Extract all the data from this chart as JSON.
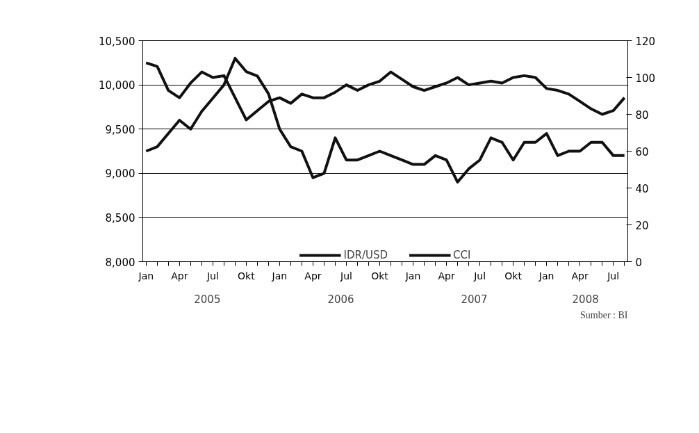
{
  "chart_data": {
    "type": "line",
    "categories": [
      "Jan",
      null,
      null,
      "Apr",
      null,
      null,
      "Jul",
      null,
      null,
      "Okt",
      null,
      null,
      "Jan",
      null,
      null,
      "Apr",
      null,
      null,
      "Jul",
      null,
      null,
      "Okt",
      null,
      null,
      "Jan",
      null,
      null,
      "Apr",
      null,
      null,
      "Jul",
      null,
      null,
      "Okt",
      null,
      null,
      "Jan",
      null,
      null,
      "Apr",
      null,
      null,
      "Jul",
      null
    ],
    "series": [
      {
        "name": "IDR/USD",
        "color": "#111111",
        "values": [
          9250,
          9300,
          9450,
          9600,
          9500,
          9700,
          9850,
          10000,
          10300,
          10150,
          10100,
          9900,
          9500,
          9300,
          9250,
          8950,
          9000,
          9400,
          9150,
          9150,
          9200,
          9250,
          9200,
          9150,
          9100,
          9100,
          9200,
          9150,
          8900,
          9050,
          9150,
          9400,
          9350,
          9150,
          9350,
          9350,
          9450,
          9200,
          9250,
          9250,
          9350,
          9350,
          9200,
          9200
        ]
      },
      {
        "name": "CCI",
        "color": "#111111",
        "axis": "y2",
        "values": [
          108,
          106,
          93,
          89,
          97,
          103,
          100,
          101,
          89,
          77,
          82,
          87,
          89,
          86,
          91,
          89,
          89,
          92,
          96,
          93,
          96,
          98,
          103,
          99,
          95,
          93,
          95,
          97,
          100,
          96,
          97,
          98,
          97,
          100,
          101,
          100,
          94,
          93,
          91,
          87,
          83,
          80,
          82,
          89
        ]
      }
    ],
    "ylim": [
      8000,
      10500
    ],
    "yticks": [
      {
        "value": 8000,
        "label": "8,000"
      },
      {
        "value": 8500,
        "label": "8,500"
      },
      {
        "value": 9000,
        "label": "9,000"
      },
      {
        "value": 9500,
        "label": "9,500"
      },
      {
        "value": 10000,
        "label": "10,000"
      },
      {
        "value": 10500,
        "label": "10,500"
      }
    ],
    "y2lim": [
      0,
      120
    ],
    "y2ticks": [
      0,
      20,
      40,
      60,
      80,
      100,
      120
    ],
    "grid": "y",
    "legend": "bottom",
    "line_style": "solid",
    "annotations": [
      "2005",
      "2006",
      "2007",
      "2008",
      "Sumber : BI"
    ]
  }
}
